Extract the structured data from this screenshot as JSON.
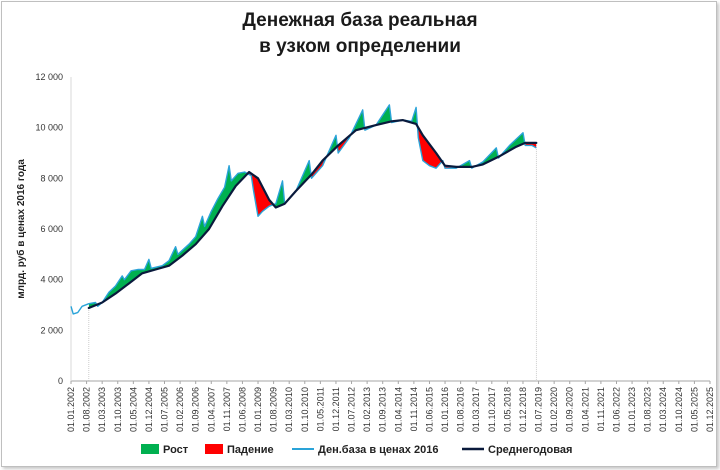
{
  "chart_data": {
    "type": "line",
    "title_line1": "Денежная база реальная",
    "title_line2": "в узком определении",
    "ylabel": "млрд. руб  в ценах 2016 года",
    "ylim": [
      0,
      12000
    ],
    "y_ticks": [
      "0",
      "2 000",
      "4 000",
      "6 000",
      "8 000",
      "10 000",
      "12 000"
    ],
    "x_tick_labels": [
      "01.01.2002",
      "01.08.2002",
      "01.03.2003",
      "01.10.2003",
      "01.05.2004",
      "01.12.2004",
      "01.07.2005",
      "01.02.2006",
      "01.09.2006",
      "01.04.2007",
      "01.11.2007",
      "01.06.2008",
      "01.01.2009",
      "01.08.2009",
      "01.03.2010",
      "01.10.2010",
      "01.05.2011",
      "01.12.2011",
      "01.07.2012",
      "01.02.2013",
      "01.09.2013",
      "01.04.2014",
      "01.11.2014",
      "01.06.2015",
      "01.01.2016",
      "01.08.2016",
      "01.03.2017",
      "01.10.2017",
      "01.05.2018",
      "01.12.2018",
      "01.07.2019",
      "01.02.2020",
      "01.09.2020",
      "01.04.2021",
      "01.11.2021",
      "01.06.2022",
      "01.01.2023",
      "01.08.2023",
      "01.03.2024",
      "01.10.2024",
      "01.05.2025",
      "01.12.2025"
    ],
    "x_start": "2002-01",
    "x_end": "2025-12",
    "legend": [
      "Рост",
      "Падение",
      "Ден.база в ценах 2016",
      "Среднегодовая"
    ],
    "legend_position": "bottom",
    "colors": {
      "growth": "#00b050",
      "fall": "#ff0000",
      "money_base": "#2aa3d8",
      "annual_avg": "#0a1a3c",
      "axis": "#a6a6a6"
    },
    "series": [
      {
        "name": "Ден.база в ценах 2016",
        "points": [
          [
            "2002-01",
            2950
          ],
          [
            "2002-02",
            2650
          ],
          [
            "2002-04",
            2700
          ],
          [
            "2002-06",
            2950
          ],
          [
            "2002-09",
            3050
          ],
          [
            "2002-12",
            3100
          ],
          [
            "2003-01",
            2950
          ],
          [
            "2003-03",
            3100
          ],
          [
            "2003-06",
            3500
          ],
          [
            "2003-09",
            3750
          ],
          [
            "2003-12",
            4150
          ],
          [
            "2004-01",
            4000
          ],
          [
            "2004-04",
            4350
          ],
          [
            "2004-07",
            4400
          ],
          [
            "2004-10",
            4400
          ],
          [
            "2004-12",
            4800
          ],
          [
            "2005-01",
            4450
          ],
          [
            "2005-06",
            4550
          ],
          [
            "2005-09",
            4750
          ],
          [
            "2005-12",
            5300
          ],
          [
            "2006-01",
            5000
          ],
          [
            "2006-06",
            5400
          ],
          [
            "2006-09",
            5700
          ],
          [
            "2006-12",
            6500
          ],
          [
            "2007-01",
            6100
          ],
          [
            "2007-04",
            6700
          ],
          [
            "2007-07",
            7200
          ],
          [
            "2007-10",
            7650
          ],
          [
            "2007-12",
            8500
          ],
          [
            "2008-01",
            7900
          ],
          [
            "2008-04",
            8200
          ],
          [
            "2008-07",
            8250
          ],
          [
            "2008-10",
            8100
          ],
          [
            "2008-11",
            7500
          ],
          [
            "2009-01",
            6500
          ],
          [
            "2009-03",
            6700
          ],
          [
            "2009-06",
            6900
          ],
          [
            "2009-09",
            7000
          ],
          [
            "2009-12",
            7900
          ],
          [
            "2010-01",
            7000
          ],
          [
            "2010-06",
            7500
          ],
          [
            "2010-12",
            8700
          ],
          [
            "2011-01",
            8000
          ],
          [
            "2011-06",
            8500
          ],
          [
            "2011-12",
            9700
          ],
          [
            "2012-01",
            9000
          ],
          [
            "2012-06",
            9600
          ],
          [
            "2012-12",
            10700
          ],
          [
            "2013-01",
            9900
          ],
          [
            "2013-06",
            10100
          ],
          [
            "2013-12",
            10900
          ],
          [
            "2014-01",
            10200
          ],
          [
            "2014-06",
            10300
          ],
          [
            "2014-10",
            10250
          ],
          [
            "2014-12",
            10800
          ],
          [
            "2015-01",
            9600
          ],
          [
            "2015-03",
            8700
          ],
          [
            "2015-06",
            8500
          ],
          [
            "2015-09",
            8400
          ],
          [
            "2015-12",
            8700
          ],
          [
            "2016-01",
            8400
          ],
          [
            "2016-06",
            8400
          ],
          [
            "2016-12",
            8700
          ],
          [
            "2017-01",
            8400
          ],
          [
            "2017-06",
            8650
          ],
          [
            "2017-12",
            9200
          ],
          [
            "2018-01",
            8800
          ],
          [
            "2018-06",
            9300
          ],
          [
            "2018-12",
            9800
          ],
          [
            "2019-01",
            9300
          ],
          [
            "2019-04",
            9300
          ],
          [
            "2019-06",
            9200
          ]
        ]
      },
      {
        "name": "Среднегодовая",
        "points": [
          [
            "2002-09",
            2880
          ],
          [
            "2003-03",
            3100
          ],
          [
            "2003-09",
            3450
          ],
          [
            "2004-03",
            3850
          ],
          [
            "2004-09",
            4250
          ],
          [
            "2005-03",
            4400
          ],
          [
            "2005-09",
            4550
          ],
          [
            "2006-03",
            4950
          ],
          [
            "2006-09",
            5400
          ],
          [
            "2007-03",
            6000
          ],
          [
            "2007-09",
            6900
          ],
          [
            "2008-03",
            7700
          ],
          [
            "2008-09",
            8250
          ],
          [
            "2009-01",
            8000
          ],
          [
            "2009-06",
            7150
          ],
          [
            "2009-09",
            6850
          ],
          [
            "2010-01",
            7000
          ],
          [
            "2010-06",
            7500
          ],
          [
            "2011-01",
            8150
          ],
          [
            "2011-06",
            8700
          ],
          [
            "2012-01",
            9300
          ],
          [
            "2012-09",
            9900
          ],
          [
            "2013-06",
            10100
          ],
          [
            "2014-01",
            10250
          ],
          [
            "2014-06",
            10300
          ],
          [
            "2014-12",
            10150
          ],
          [
            "2015-03",
            9700
          ],
          [
            "2015-09",
            9000
          ],
          [
            "2016-01",
            8500
          ],
          [
            "2016-06",
            8450
          ],
          [
            "2017-01",
            8450
          ],
          [
            "2017-06",
            8550
          ],
          [
            "2018-01",
            8850
          ],
          [
            "2018-09",
            9250
          ],
          [
            "2019-01",
            9400
          ],
          [
            "2019-06",
            9400
          ]
        ]
      }
    ]
  }
}
